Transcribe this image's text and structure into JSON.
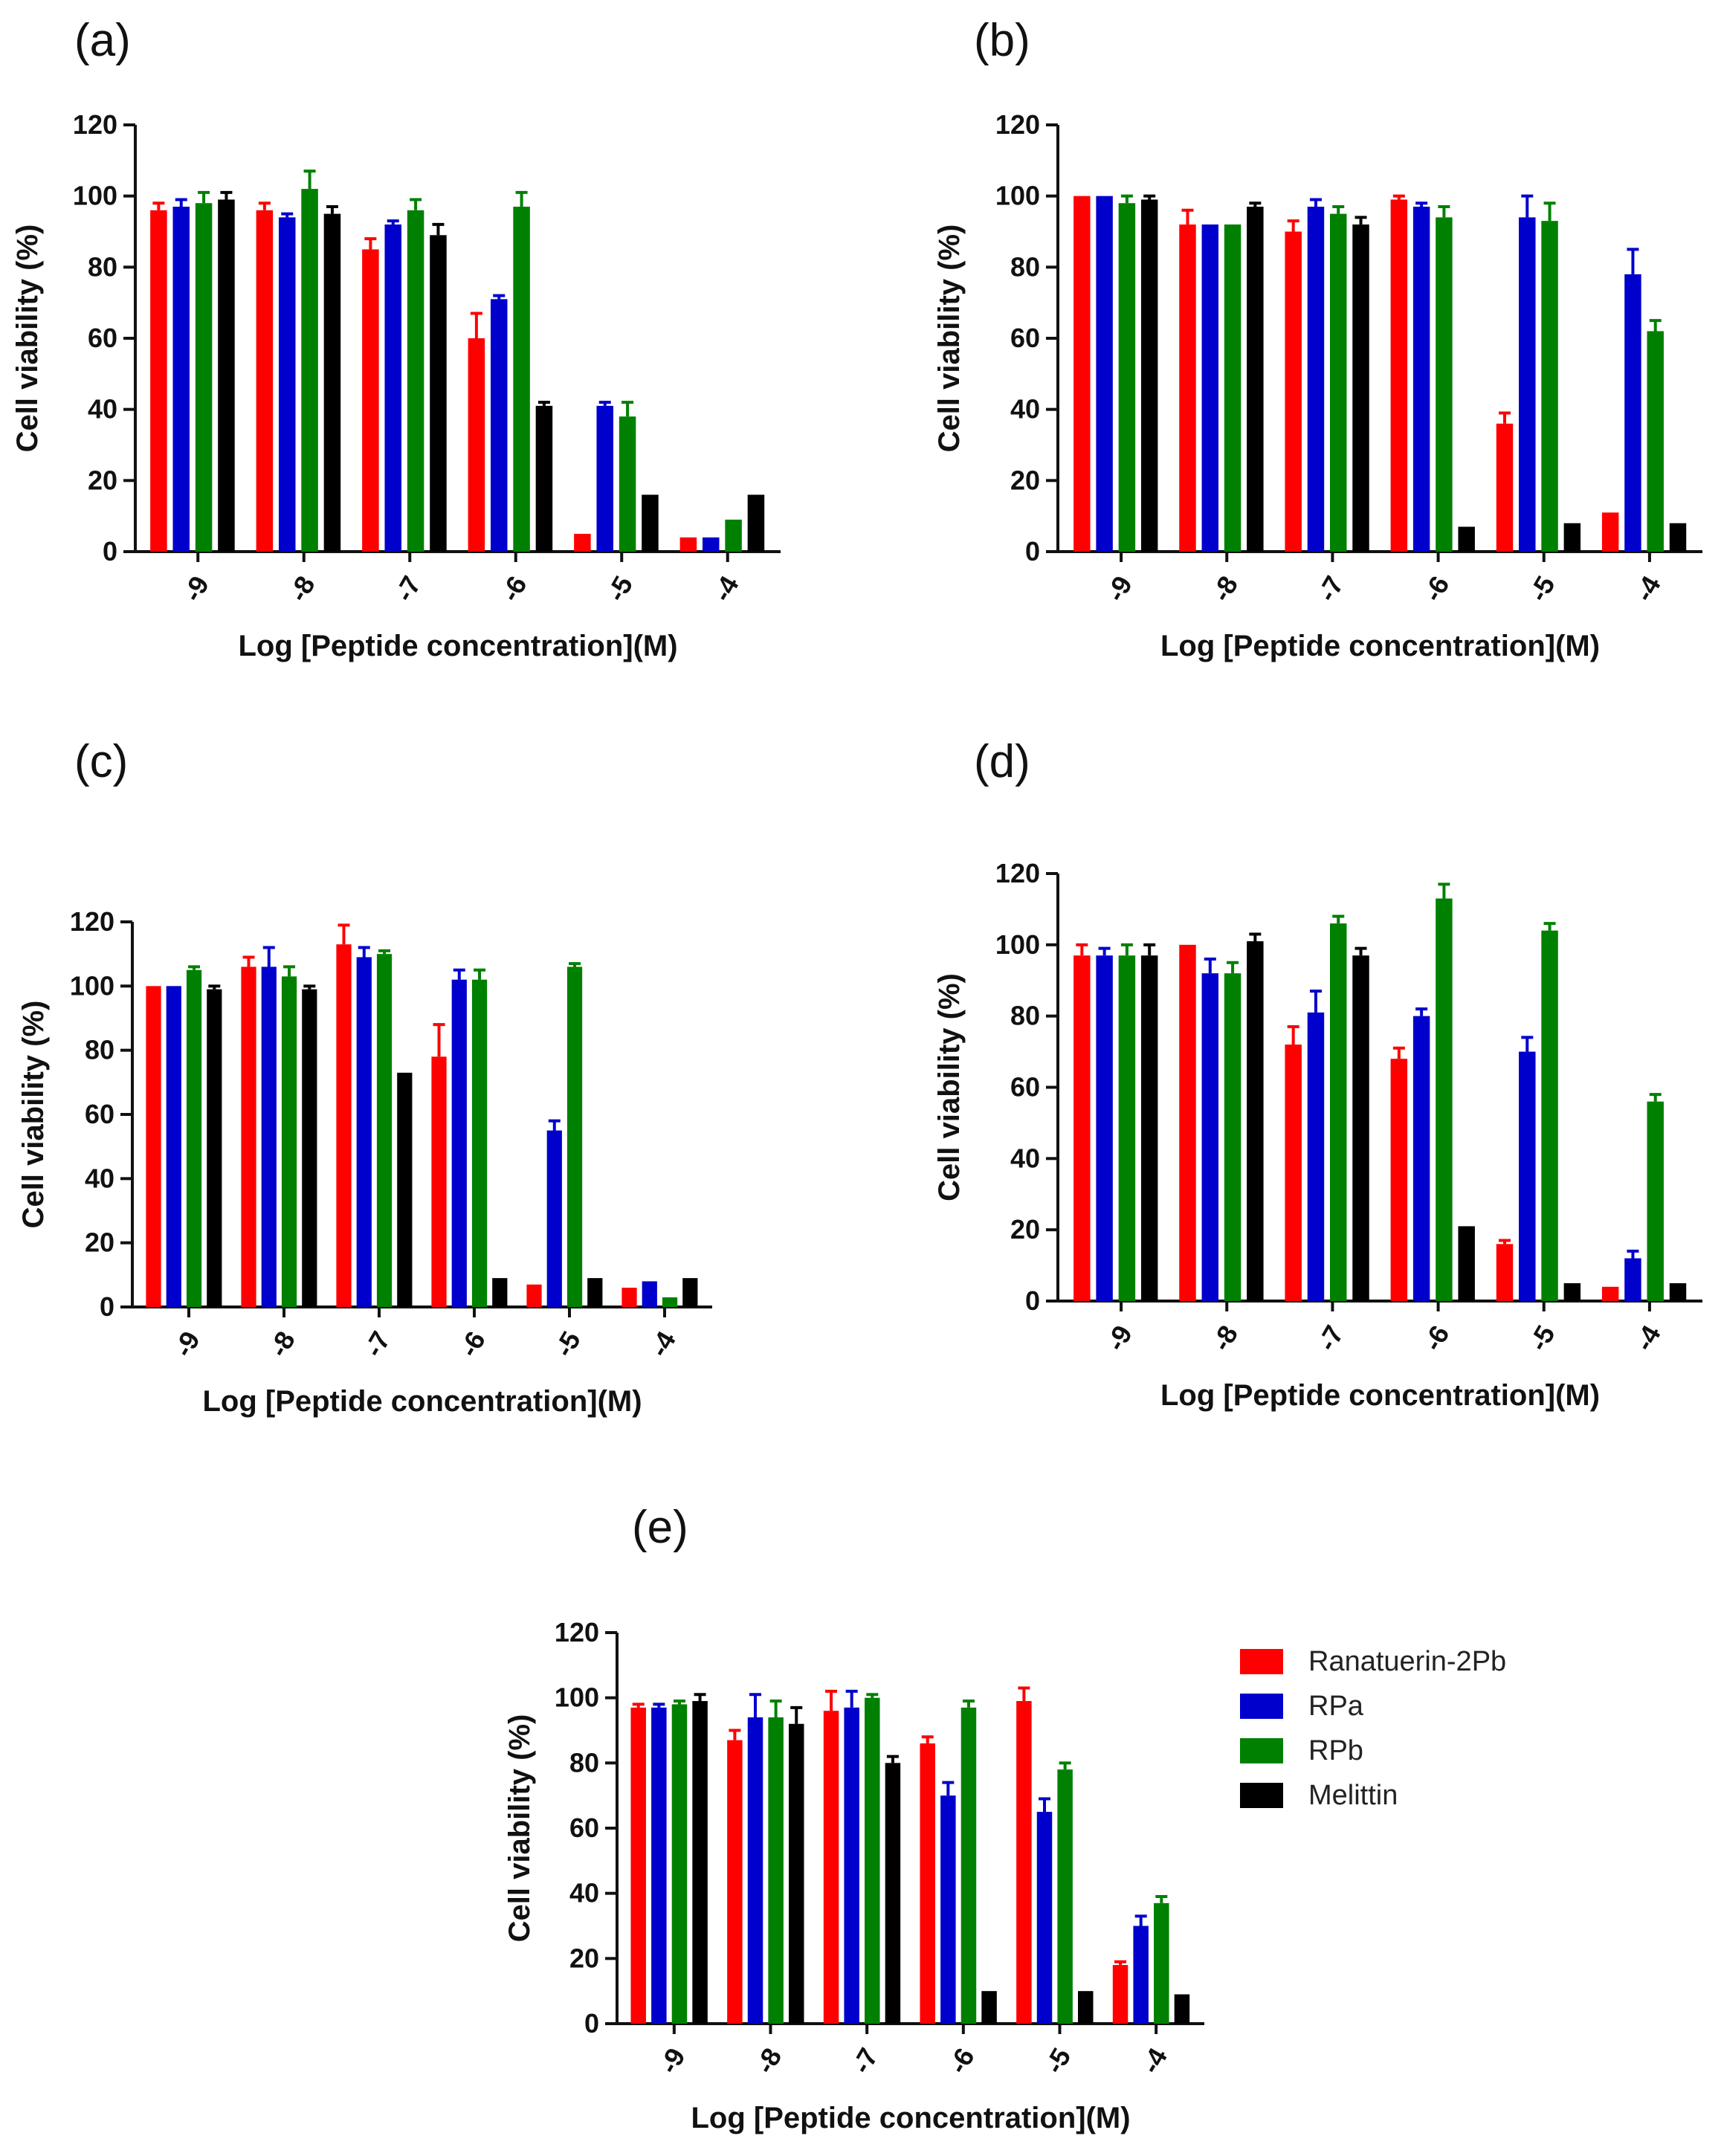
{
  "figure": {
    "legend": [
      {
        "name": "Ranatuerin-2Pb",
        "color": "#ff0000"
      },
      {
        "name": "RPa",
        "color": "#0000cc"
      },
      {
        "name": "RPb",
        "color": "#008000"
      },
      {
        "name": "Melittin",
        "color": "#000000"
      }
    ]
  },
  "chart_data": [
    {
      "type": "bar",
      "panel_label": "(a)",
      "categories": [
        "-9",
        "-8",
        "-7",
        "-6",
        "-5",
        "-4"
      ],
      "xlabel": "Log [Peptide concentration](M)",
      "ylabel": "Cell viability (%)",
      "ylim": [
        0,
        120
      ],
      "yticks": [
        "0",
        "20",
        "40",
        "60",
        "80",
        "100",
        "120"
      ],
      "series": [
        {
          "name": "Ranatuerin-2Pb",
          "color": "#ff0000",
          "values": [
            96,
            96,
            85,
            60,
            5,
            4
          ],
          "errors": [
            2,
            2,
            3,
            7,
            0.5,
            0.5
          ]
        },
        {
          "name": "RPa",
          "color": "#0000cc",
          "values": [
            97,
            94,
            92,
            71,
            41,
            4
          ],
          "errors": [
            2,
            1,
            1,
            1,
            1,
            0.5
          ]
        },
        {
          "name": "RPb",
          "color": "#008000",
          "values": [
            98,
            102,
            96,
            97,
            38,
            9
          ],
          "errors": [
            3,
            5,
            3,
            4,
            4,
            0.5
          ]
        },
        {
          "name": "Melittin",
          "color": "#000000",
          "values": [
            99,
            95,
            89,
            41,
            16,
            16
          ],
          "errors": [
            2,
            2,
            3,
            1,
            0.5,
            0.5
          ]
        }
      ]
    },
    {
      "type": "bar",
      "panel_label": "(b)",
      "categories": [
        "-9",
        "-8",
        "-7",
        "-6",
        "-5",
        "-4"
      ],
      "xlabel": "Log [Peptide concentration](M)",
      "ylabel": "Cell viability (%)",
      "ylim": [
        0,
        120
      ],
      "yticks": [
        "0",
        "20",
        "40",
        "60",
        "80",
        "100",
        "120"
      ],
      "series": [
        {
          "name": "Ranatuerin-2Pb",
          "color": "#ff0000",
          "values": [
            100,
            92,
            90,
            99,
            36,
            11
          ],
          "errors": [
            0.5,
            4,
            3,
            1,
            3,
            0.5
          ]
        },
        {
          "name": "RPa",
          "color": "#0000cc",
          "values": [
            100,
            92,
            97,
            97,
            94,
            78
          ],
          "errors": [
            0.5,
            0.5,
            2,
            1,
            6,
            7
          ]
        },
        {
          "name": "RPb",
          "color": "#008000",
          "values": [
            98,
            92,
            95,
            94,
            93,
            62
          ],
          "errors": [
            2,
            0.5,
            2,
            3,
            5,
            3
          ]
        },
        {
          "name": "Melittin",
          "color": "#000000",
          "values": [
            99,
            97,
            92,
            7,
            8,
            8
          ],
          "errors": [
            1,
            1,
            2,
            0.5,
            0.5,
            0.5
          ]
        }
      ]
    },
    {
      "type": "bar",
      "panel_label": "(c)",
      "categories": [
        "-9",
        "-8",
        "-7",
        "-6",
        "-5",
        "-4"
      ],
      "xlabel": "Log [Peptide concentration](M)",
      "ylabel": "Cell viability (%)",
      "ylim": [
        0,
        120
      ],
      "yticks": [
        "0",
        "20",
        "40",
        "60",
        "80",
        "100",
        "120"
      ],
      "series": [
        {
          "name": "Ranatuerin-2Pb",
          "color": "#ff0000",
          "values": [
            100,
            106,
            113,
            78,
            7,
            6
          ],
          "errors": [
            0.5,
            3,
            6,
            10,
            0.5,
            0.5
          ]
        },
        {
          "name": "RPa",
          "color": "#0000cc",
          "values": [
            100,
            106,
            109,
            102,
            55,
            8
          ],
          "errors": [
            0.5,
            6,
            3,
            3,
            3,
            0.5
          ]
        },
        {
          "name": "RPb",
          "color": "#008000",
          "values": [
            105,
            103,
            110,
            102,
            106,
            3
          ],
          "errors": [
            1,
            3,
            1,
            3,
            1,
            0.5
          ]
        },
        {
          "name": "Melittin",
          "color": "#000000",
          "values": [
            99,
            99,
            73,
            9,
            9,
            9
          ],
          "errors": [
            1,
            1,
            0.5,
            0.5,
            0.5,
            0.5
          ]
        }
      ]
    },
    {
      "type": "bar",
      "panel_label": "(d)",
      "categories": [
        "-9",
        "-8",
        "-7",
        "-6",
        "-5",
        "-4"
      ],
      "xlabel": "Log [Peptide concentration](M)",
      "ylabel": "Cell viability (%)",
      "ylim": [
        0,
        120
      ],
      "yticks": [
        "0",
        "20",
        "40",
        "60",
        "80",
        "100",
        "120"
      ],
      "series": [
        {
          "name": "Ranatuerin-2Pb",
          "color": "#ff0000",
          "values": [
            97,
            100,
            72,
            68,
            16,
            4
          ],
          "errors": [
            3,
            0.5,
            5,
            3,
            1,
            0.5
          ]
        },
        {
          "name": "RPa",
          "color": "#0000cc",
          "values": [
            97,
            92,
            81,
            80,
            70,
            12
          ],
          "errors": [
            2,
            4,
            6,
            2,
            4,
            2
          ]
        },
        {
          "name": "RPb",
          "color": "#008000",
          "values": [
            97,
            92,
            106,
            113,
            104,
            56
          ],
          "errors": [
            3,
            3,
            2,
            4,
            2,
            2
          ]
        },
        {
          "name": "Melittin",
          "color": "#000000",
          "values": [
            97,
            101,
            97,
            21,
            5,
            5
          ],
          "errors": [
            3,
            2,
            2,
            0.5,
            0.5,
            0.5
          ]
        }
      ]
    },
    {
      "type": "bar",
      "panel_label": "(e)",
      "categories": [
        "-9",
        "-8",
        "-7",
        "-6",
        "-5",
        "-4"
      ],
      "xlabel": "Log [Peptide concentration](M)",
      "ylabel": "Cell viability (%)",
      "ylim": [
        0,
        120
      ],
      "yticks": [
        "0",
        "20",
        "40",
        "60",
        "80",
        "100",
        "120"
      ],
      "series": [
        {
          "name": "Ranatuerin-2Pb",
          "color": "#ff0000",
          "values": [
            97,
            87,
            96,
            86,
            99,
            18
          ],
          "errors": [
            1,
            3,
            6,
            2,
            4,
            1
          ]
        },
        {
          "name": "RPa",
          "color": "#0000cc",
          "values": [
            97,
            94,
            97,
            70,
            65,
            30
          ],
          "errors": [
            1,
            7,
            5,
            4,
            4,
            3
          ]
        },
        {
          "name": "RPb",
          "color": "#008000",
          "values": [
            98,
            94,
            100,
            97,
            78,
            37
          ],
          "errors": [
            1,
            5,
            1,
            2,
            2,
            2
          ]
        },
        {
          "name": "Melittin",
          "color": "#000000",
          "values": [
            99,
            92,
            80,
            10,
            10,
            9
          ],
          "errors": [
            2,
            5,
            2,
            0.5,
            0.5,
            0.5
          ]
        }
      ]
    }
  ]
}
